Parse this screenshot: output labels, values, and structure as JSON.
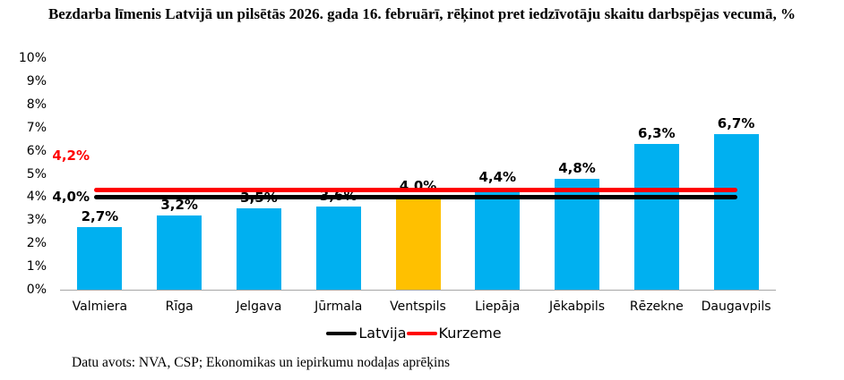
{
  "title": "Bezdarba līmenis Latvijā un pilsētās 2026. gada 16. februārī, rēķinot pret iedzīvotāju skaitu darbspējas vecumā, %",
  "footer": "Datu avots: NVA, CSP; Ekonomikas un iepirkumu nodaļas aprēķins",
  "chart_data": {
    "type": "bar",
    "categories": [
      "Valmiera",
      "Rīga",
      "Jelgava",
      "Jūrmala",
      "Ventspils",
      "Liepāja",
      "Jēkabpils",
      "Rēzekne",
      "Daugavpils"
    ],
    "values": [
      2.7,
      3.2,
      3.5,
      3.6,
      4.0,
      4.4,
      4.8,
      6.3,
      6.7
    ],
    "value_labels": [
      "2,7%",
      "3,2%",
      "3,5%",
      "3,6%",
      "4,0%",
      "4,4%",
      "4,8%",
      "6,3%",
      "6,7%"
    ],
    "bar_colors": [
      "#00B0F0",
      "#00B0F0",
      "#00B0F0",
      "#00B0F0",
      "#FFC000",
      "#00B0F0",
      "#00B0F0",
      "#00B0F0",
      "#00B0F0"
    ],
    "reference_lines": [
      {
        "name": "Latvija",
        "value": 4.0,
        "label": "4,0%",
        "color": "#000000"
      },
      {
        "name": "Kurzeme",
        "value": 4.2,
        "label": "4,2%",
        "color": "#FF0000"
      }
    ],
    "legend": [
      {
        "label": "Latvija",
        "color": "#000000"
      },
      {
        "label": "Kurzeme",
        "color": "#FF0000"
      }
    ],
    "y_ticks": [
      "0%",
      "1%",
      "2%",
      "3%",
      "4%",
      "5%",
      "6%",
      "7%",
      "8%",
      "9%",
      "10%"
    ],
    "ylim": [
      0,
      10
    ],
    "xlabel": "",
    "ylabel": "",
    "grid": false,
    "legend_position": "bottom"
  }
}
